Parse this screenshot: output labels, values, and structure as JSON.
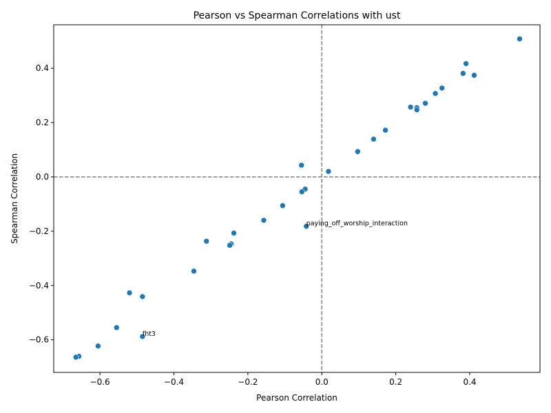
{
  "chart_data": {
    "type": "scatter",
    "title": "Pearson vs Spearman Correlations with ust",
    "xlabel": "Pearson Correlation",
    "ylabel": "Spearman Correlation",
    "xlim": [
      -0.725,
      0.59
    ],
    "ylim": [
      -0.72,
      0.56
    ],
    "xticks": [
      -0.6,
      -0.4,
      -0.2,
      0.0,
      0.2,
      0.4
    ],
    "yticks": [
      -0.6,
      -0.4,
      -0.2,
      0.0,
      0.2,
      0.4
    ],
    "xtick_labels": [
      "−0.6",
      "−0.4",
      "−0.2",
      "0.0",
      "0.2",
      "0.4"
    ],
    "ytick_labels": [
      "−0.6",
      "−0.4",
      "−0.2",
      "0.0",
      "0.2",
      "0.4"
    ],
    "grid": false,
    "reference_lines": {
      "x": 0.0,
      "y": 0.0,
      "style": "dashed",
      "color": "#808080"
    },
    "marker_color": "#1f77b4",
    "points": [
      {
        "x": 0.535,
        "y": 0.508
      },
      {
        "x": 0.39,
        "y": 0.417
      },
      {
        "x": 0.382,
        "y": 0.381
      },
      {
        "x": 0.412,
        "y": 0.374
      },
      {
        "x": 0.325,
        "y": 0.327
      },
      {
        "x": 0.307,
        "y": 0.307
      },
      {
        "x": 0.28,
        "y": 0.271
      },
      {
        "x": 0.24,
        "y": 0.257
      },
      {
        "x": 0.257,
        "y": 0.255
      },
      {
        "x": 0.257,
        "y": 0.247
      },
      {
        "x": 0.172,
        "y": 0.172
      },
      {
        "x": 0.14,
        "y": 0.139
      },
      {
        "x": 0.097,
        "y": 0.093
      },
      {
        "x": -0.055,
        "y": 0.043
      },
      {
        "x": 0.018,
        "y": 0.02
      },
      {
        "x": -0.045,
        "y": -0.045
      },
      {
        "x": -0.054,
        "y": -0.055
      },
      {
        "x": -0.106,
        "y": -0.106
      },
      {
        "x": -0.157,
        "y": -0.16
      },
      {
        "x": -0.042,
        "y": -0.182
      },
      {
        "x": -0.238,
        "y": -0.207
      },
      {
        "x": -0.312,
        "y": -0.237
      },
      {
        "x": -0.245,
        "y": -0.247
      },
      {
        "x": -0.249,
        "y": -0.252
      },
      {
        "x": -0.346,
        "y": -0.347
      },
      {
        "x": -0.52,
        "y": -0.427
      },
      {
        "x": -0.485,
        "y": -0.441
      },
      {
        "x": -0.555,
        "y": -0.555
      },
      {
        "x": -0.485,
        "y": -0.588
      },
      {
        "x": -0.605,
        "y": -0.623
      },
      {
        "x": -0.657,
        "y": -0.661
      },
      {
        "x": -0.665,
        "y": -0.664
      }
    ],
    "annotations": [
      {
        "text": "paying_off_worship_interaction",
        "x": -0.042,
        "y": -0.182
      },
      {
        "text": "fht3",
        "x": -0.485,
        "y": -0.588
      }
    ]
  }
}
